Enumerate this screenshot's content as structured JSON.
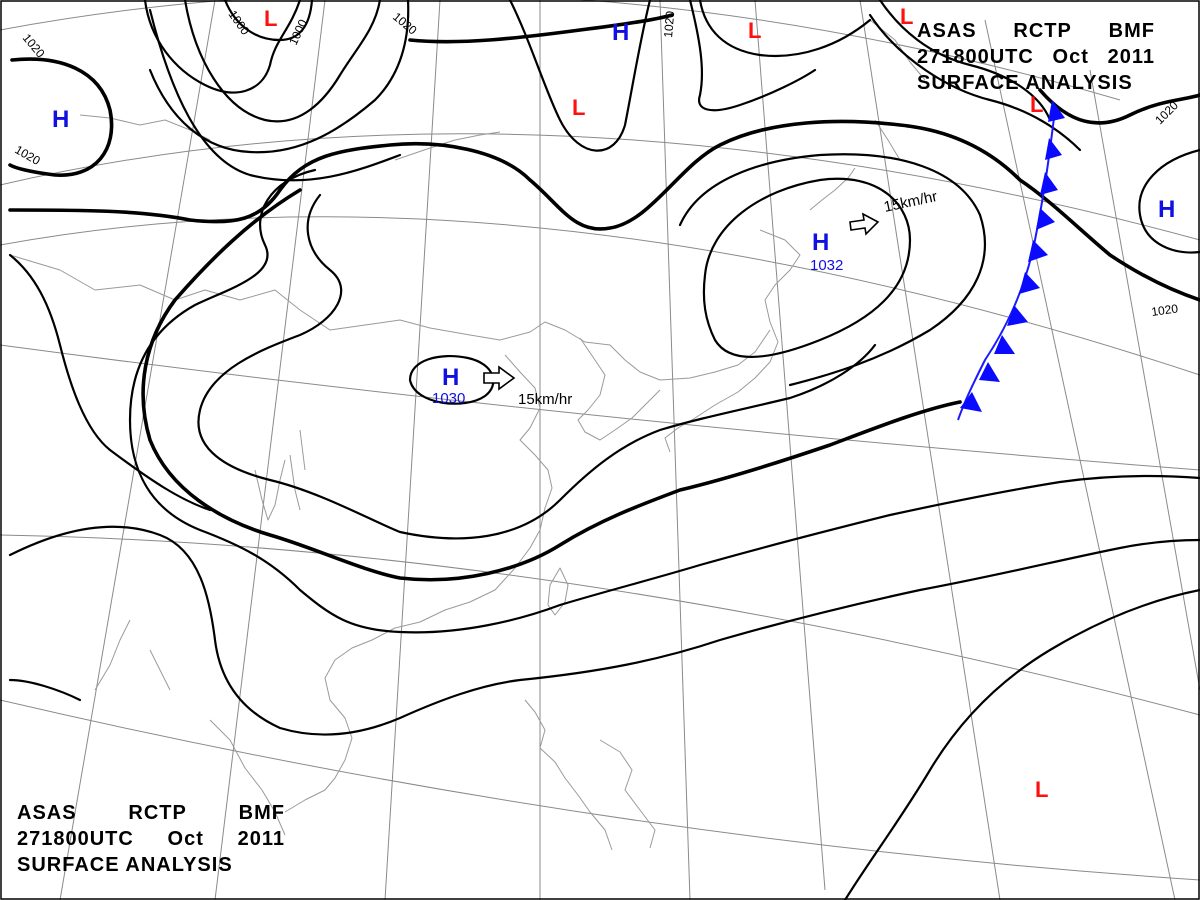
{
  "chart_header": {
    "agency_code": "ASAS",
    "station": "RCTP",
    "office": "BMF",
    "valid_time": "271800UTC",
    "month": "Oct",
    "year": "2011",
    "analysis_type": "SURFACE ANALYSIS"
  },
  "pressure_centers": [
    {
      "type": "H",
      "value": "1030",
      "speed": "15km/hr"
    },
    {
      "type": "H",
      "value": "1032",
      "speed": "15km/hr"
    },
    {
      "type": "H",
      "value": ""
    },
    {
      "type": "H",
      "value": ""
    },
    {
      "type": "H",
      "value": ""
    },
    {
      "type": "L",
      "value": ""
    },
    {
      "type": "L",
      "value": ""
    },
    {
      "type": "L",
      "value": ""
    },
    {
      "type": "L",
      "value": ""
    },
    {
      "type": "L",
      "value": ""
    },
    {
      "type": "L",
      "value": ""
    }
  ],
  "isobar_labels": [
    "1020",
    "1020",
    "1000",
    "1000",
    "1020",
    "1020",
    "1020",
    "1020"
  ],
  "fronts": [
    {
      "type": "cold"
    }
  ],
  "colors": {
    "high": "#1010e0",
    "low": "#ff1010",
    "front": "#0a0aff",
    "isobar": "#000000",
    "grid": "#8a8a8a",
    "coastline": "#9a9a9a"
  }
}
